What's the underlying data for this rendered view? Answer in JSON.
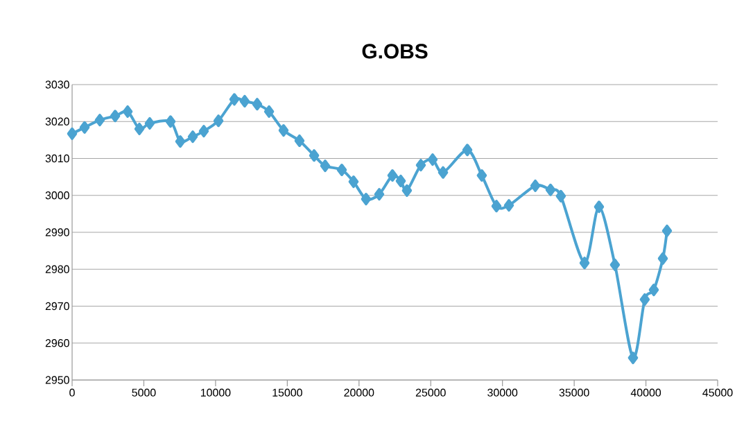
{
  "chart_data": {
    "type": "line",
    "title": "G.OBS",
    "x": [
      0,
      870,
      1930,
      3000,
      3870,
      4690,
      5410,
      6860,
      7540,
      8410,
      9180,
      10200,
      11310,
      12030,
      12900,
      13730,
      14740,
      15850,
      16870,
      17640,
      18800,
      19620,
      20490,
      21410,
      22330,
      22910,
      23340,
      24310,
      25130,
      25860,
      27550,
      28560,
      29580,
      30450,
      32290,
      33350,
      34070,
      35720,
      36730,
      37840,
      39100,
      39920,
      40550,
      41180,
      41470
    ],
    "series": [
      {
        "color": "#4ba3d1",
        "values": [
          3016.7,
          3018.4,
          3020.4,
          3021.5,
          3022.7,
          3018.0,
          3019.5,
          3020.0,
          3014.6,
          3015.9,
          3017.4,
          3020.2,
          3026.0,
          3025.5,
          3024.7,
          3022.7,
          3017.6,
          3014.8,
          3010.8,
          3008.0,
          3006.9,
          3003.7,
          2999.0,
          3000.3,
          3005.4,
          3003.9,
          3001.3,
          3008.2,
          3009.7,
          3006.2,
          3012.3,
          3005.4,
          2997.1,
          2997.3,
          3002.6,
          3001.5,
          2999.8,
          2981.7,
          2996.9,
          2981.2,
          2956.0,
          2971.8,
          2974.4,
          2982.9,
          2990.4
        ]
      }
    ],
    "xlim": [
      0,
      45000
    ],
    "xticks": [
      0,
      5000,
      10000,
      15000,
      20000,
      25000,
      30000,
      35000,
      40000,
      45000
    ],
    "ylim": [
      2950,
      3030
    ],
    "yticks": [
      2950,
      2960,
      2970,
      2980,
      2990,
      3000,
      3010,
      3020,
      3030
    ],
    "grid": "y",
    "marker": "diamond"
  }
}
